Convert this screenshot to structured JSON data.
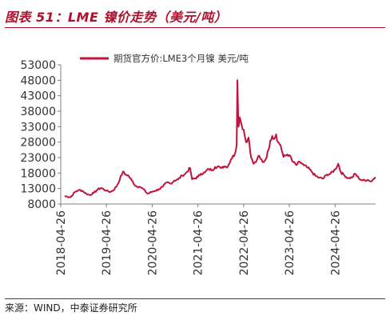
{
  "header": {
    "title": "图表 51：LME 镍价走势（美元/吨）"
  },
  "footer": {
    "source": "来源：WIND，中泰证券研究所"
  },
  "colors": {
    "accent": "#b0102d",
    "series": "#c0143c",
    "axis": "#7f7f7f"
  },
  "chart_data": {
    "type": "line",
    "title": "",
    "xlabel": "",
    "ylabel": "",
    "ylim": [
      8000,
      53000
    ],
    "yticks": [
      "8000",
      "13000",
      "18000",
      "23000",
      "28000",
      "33000",
      "38000",
      "43000",
      "48000",
      "53000"
    ],
    "xlim": [
      "2018-04-26",
      "2025-03-15"
    ],
    "xticks": [
      "2018-04-26",
      "2019-04-26",
      "2020-04-26",
      "2021-04-26",
      "2022-04-26",
      "2023-04-26",
      "2024-04-26"
    ],
    "legend_position": "top-center",
    "grid": false,
    "series": [
      {
        "name": "期货官方价:LME3个月镍 美元/吨",
        "points": [
          [
            "2018-06-01",
            10500
          ],
          [
            "2018-07-15",
            10200
          ],
          [
            "2018-08-15",
            11800
          ],
          [
            "2018-09-15",
            12500
          ],
          [
            "2018-10-15",
            12300
          ],
          [
            "2018-11-15",
            11300
          ],
          [
            "2018-12-15",
            10900
          ],
          [
            "2019-01-15",
            11600
          ],
          [
            "2019-02-15",
            12700
          ],
          [
            "2019-03-15",
            13200
          ],
          [
            "2019-04-26",
            12300
          ],
          [
            "2019-05-20",
            11900
          ],
          [
            "2019-06-20",
            12400
          ],
          [
            "2019-07-20",
            14000
          ],
          [
            "2019-08-10",
            15900
          ],
          [
            "2019-09-05",
            18500
          ],
          [
            "2019-09-20",
            17600
          ],
          [
            "2019-10-15",
            17300
          ],
          [
            "2019-11-15",
            15600
          ],
          [
            "2019-12-15",
            13800
          ],
          [
            "2020-01-15",
            13600
          ],
          [
            "2020-02-15",
            12800
          ],
          [
            "2020-03-20",
            11300
          ],
          [
            "2020-04-26",
            12000
          ],
          [
            "2020-05-20",
            12300
          ],
          [
            "2020-06-20",
            12800
          ],
          [
            "2020-07-20",
            13600
          ],
          [
            "2020-08-20",
            15000
          ],
          [
            "2020-09-20",
            14600
          ],
          [
            "2020-10-20",
            15600
          ],
          [
            "2020-11-20",
            16000
          ],
          [
            "2020-12-20",
            17200
          ],
          [
            "2021-01-15",
            17800
          ],
          [
            "2021-02-22",
            19600
          ],
          [
            "2021-03-10",
            16000
          ],
          [
            "2021-03-30",
            16200
          ],
          [
            "2021-04-26",
            16800
          ],
          [
            "2021-05-20",
            17800
          ],
          [
            "2021-06-20",
            18200
          ],
          [
            "2021-07-20",
            19300
          ],
          [
            "2021-08-20",
            19000
          ],
          [
            "2021-09-10",
            20000
          ],
          [
            "2021-10-20",
            19800
          ],
          [
            "2021-11-20",
            20200
          ],
          [
            "2021-12-20",
            20100
          ],
          [
            "2022-01-15",
            22500
          ],
          [
            "2022-02-15",
            24200
          ],
          [
            "2022-03-01",
            27000
          ],
          [
            "2022-03-07",
            48000
          ],
          [
            "2022-03-15",
            33000
          ],
          [
            "2022-03-25",
            36000
          ],
          [
            "2022-04-10",
            33500
          ],
          [
            "2022-04-26",
            32000
          ],
          [
            "2022-05-15",
            28000
          ],
          [
            "2022-06-05",
            29500
          ],
          [
            "2022-06-25",
            23000
          ],
          [
            "2022-07-15",
            21000
          ],
          [
            "2022-08-01",
            21500
          ],
          [
            "2022-08-20",
            23500
          ],
          [
            "2022-09-10",
            22500
          ],
          [
            "2022-10-01",
            21500
          ],
          [
            "2022-10-20",
            22500
          ],
          [
            "2022-11-10",
            25500
          ],
          [
            "2022-11-25",
            28500
          ],
          [
            "2022-12-10",
            30000
          ],
          [
            "2022-12-25",
            29000
          ],
          [
            "2023-01-10",
            30500
          ],
          [
            "2023-01-25",
            28000
          ],
          [
            "2023-02-15",
            27000
          ],
          [
            "2023-03-10",
            23200
          ],
          [
            "2023-04-10",
            24000
          ],
          [
            "2023-04-26",
            23800
          ],
          [
            "2023-05-20",
            21800
          ],
          [
            "2023-06-20",
            20600
          ],
          [
            "2023-07-20",
            21600
          ],
          [
            "2023-08-20",
            20500
          ],
          [
            "2023-09-20",
            19700
          ],
          [
            "2023-10-20",
            18500
          ],
          [
            "2023-11-20",
            17100
          ],
          [
            "2023-12-20",
            16500
          ],
          [
            "2024-01-20",
            16200
          ],
          [
            "2024-02-20",
            17500
          ],
          [
            "2024-03-20",
            17800
          ],
          [
            "2024-04-26",
            19200
          ],
          [
            "2024-05-20",
            21000
          ],
          [
            "2024-06-10",
            18300
          ],
          [
            "2024-07-10",
            17200
          ],
          [
            "2024-08-10",
            16300
          ],
          [
            "2024-09-10",
            16600
          ],
          [
            "2024-10-01",
            17800
          ],
          [
            "2024-11-01",
            16300
          ],
          [
            "2024-12-01",
            15600
          ],
          [
            "2025-01-10",
            15800
          ],
          [
            "2025-02-10",
            15300
          ],
          [
            "2025-03-01",
            16200
          ],
          [
            "2025-03-10",
            16500
          ]
        ]
      }
    ]
  }
}
